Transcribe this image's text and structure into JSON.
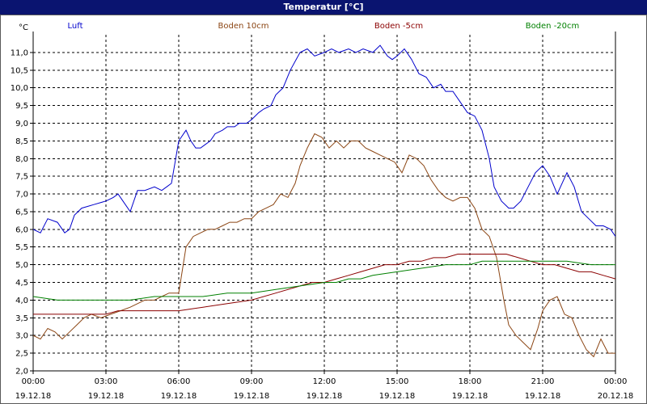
{
  "window": {
    "title": "Temperatur [°C]"
  },
  "chart_data": {
    "type": "line",
    "ylabel": "°C",
    "ylim": [
      2.0,
      11.5
    ],
    "yticks": [
      2.0,
      2.5,
      3.0,
      3.5,
      4.0,
      4.5,
      5.0,
      5.5,
      6.0,
      6.5,
      7.0,
      7.5,
      8.0,
      8.5,
      9.0,
      9.5,
      10.0,
      10.5,
      11.0
    ],
    "ytick_labels": [
      "2,0",
      "2,5",
      "3,0",
      "3,5",
      "4,0",
      "4,5",
      "5,0",
      "5,5",
      "6,0",
      "6,5",
      "7,0",
      "7,5",
      "8,0",
      "8,5",
      "9,0",
      "9,5",
      "10,0",
      "10,5",
      "11,0"
    ],
    "xlim": [
      0,
      24
    ],
    "xticks": [
      0,
      3,
      6,
      9,
      12,
      15,
      18,
      21,
      24
    ],
    "xtick_time_labels": [
      "00:00",
      "03:00",
      "06:00",
      "09:00",
      "12:00",
      "15:00",
      "18:00",
      "21:00",
      "00:00"
    ],
    "xtick_date_labels": [
      "19.12.18",
      "19.12.18",
      "19.12.18",
      "19.12.18",
      "19.12.18",
      "19.12.18",
      "19.12.18",
      "19.12.18",
      "20.12.18"
    ],
    "grid": true,
    "legend_position": "top",
    "series": [
      {
        "name": "Luft",
        "color": "#0000cc",
        "x": [
          0,
          0.3,
          0.6,
          1,
          1.3,
          1.5,
          1.7,
          2,
          2.5,
          3,
          3.3,
          3.5,
          3.7,
          4,
          4.3,
          4.6,
          5,
          5.3,
          5.5,
          5.7,
          6,
          6.3,
          6.5,
          6.7,
          6.9,
          7.1,
          7.3,
          7.5,
          7.8,
          8,
          8.3,
          8.5,
          8.8,
          9,
          9.3,
          9.5,
          9.8,
          10,
          10.3,
          10.6,
          11,
          11.3,
          11.6,
          12,
          12.3,
          12.6,
          13,
          13.3,
          13.6,
          14,
          14.3,
          14.6,
          14.8,
          15,
          15.3,
          15.6,
          15.9,
          16.2,
          16.5,
          16.8,
          17,
          17.3,
          17.6,
          17.9,
          18.2,
          18.5,
          18.8,
          19,
          19.3,
          19.6,
          19.8,
          20.1,
          20.4,
          20.7,
          21,
          21.3,
          21.6,
          21.8,
          22,
          22.3,
          22.6,
          22.9,
          23.2,
          23.5,
          23.8,
          24
        ],
        "y": [
          6.0,
          5.9,
          6.3,
          6.2,
          5.9,
          6.0,
          6.4,
          6.6,
          6.7,
          6.8,
          6.9,
          7.0,
          6.8,
          6.5,
          7.1,
          7.1,
          7.2,
          7.1,
          7.2,
          7.3,
          8.5,
          8.8,
          8.5,
          8.3,
          8.3,
          8.4,
          8.5,
          8.7,
          8.8,
          8.9,
          8.9,
          9.0,
          9.0,
          9.1,
          9.3,
          9.4,
          9.5,
          9.8,
          10.0,
          10.5,
          11.0,
          11.1,
          10.9,
          11.0,
          11.1,
          11.0,
          11.1,
          11.0,
          11.1,
          11.0,
          11.2,
          10.9,
          10.8,
          10.9,
          11.1,
          10.8,
          10.4,
          10.3,
          10.0,
          10.1,
          9.9,
          9.9,
          9.6,
          9.3,
          9.2,
          8.8,
          8.0,
          7.2,
          6.8,
          6.6,
          6.6,
          6.8,
          7.2,
          7.6,
          7.8,
          7.5,
          7.0,
          7.3,
          7.6,
          7.2,
          6.5,
          6.3,
          6.1,
          6.1,
          6.0,
          5.8
        ]
      },
      {
        "name": "Boden 10cm",
        "color": "#8b4513",
        "x": [
          0,
          0.3,
          0.6,
          0.9,
          1.2,
          1.5,
          1.8,
          2.1,
          2.4,
          2.8,
          3.2,
          3.6,
          4,
          4.3,
          4.6,
          5,
          5.3,
          5.6,
          6,
          6.3,
          6.6,
          6.9,
          7.2,
          7.5,
          7.8,
          8.1,
          8.4,
          8.7,
          9,
          9.3,
          9.6,
          9.9,
          10.2,
          10.5,
          10.8,
          11,
          11.3,
          11.6,
          11.9,
          12.2,
          12.5,
          12.8,
          13.1,
          13.4,
          13.7,
          14,
          14.3,
          14.6,
          14.9,
          15.2,
          15.5,
          15.8,
          16.1,
          16.4,
          16.7,
          17,
          17.3,
          17.6,
          17.9,
          18.2,
          18.5,
          18.8,
          19.1,
          19.4,
          19.6,
          19.9,
          20.2,
          20.5,
          20.8,
          21,
          21.3,
          21.6,
          21.9,
          22.2,
          22.5,
          22.8,
          23.1,
          23.4,
          23.7,
          24
        ],
        "y": [
          3.0,
          2.9,
          3.2,
          3.1,
          2.9,
          3.1,
          3.3,
          3.5,
          3.6,
          3.5,
          3.6,
          3.7,
          3.8,
          3.9,
          4.0,
          4.0,
          4.1,
          4.2,
          4.2,
          5.5,
          5.8,
          5.9,
          6.0,
          6.0,
          6.1,
          6.2,
          6.2,
          6.3,
          6.3,
          6.5,
          6.6,
          6.7,
          7.0,
          6.9,
          7.3,
          7.8,
          8.3,
          8.7,
          8.6,
          8.3,
          8.5,
          8.3,
          8.5,
          8.5,
          8.3,
          8.2,
          8.1,
          8.0,
          7.9,
          7.6,
          8.1,
          8.0,
          7.8,
          7.4,
          7.1,
          6.9,
          6.8,
          6.9,
          6.9,
          6.6,
          6.0,
          5.8,
          5.2,
          4.0,
          3.3,
          3.0,
          2.8,
          2.6,
          3.2,
          3.7,
          4.0,
          4.1,
          3.6,
          3.5,
          3.0,
          2.6,
          2.4,
          2.9,
          2.5,
          2.5
        ]
      },
      {
        "name": "Boden -5cm",
        "color": "#8b0000",
        "x": [
          0,
          1,
          2,
          3,
          3.5,
          4,
          5,
          6,
          7,
          8,
          9,
          10,
          11,
          11.5,
          12,
          12.5,
          13,
          13.5,
          14,
          14.5,
          15,
          15.5,
          16,
          16.5,
          17,
          17.5,
          18,
          18.5,
          19,
          19.5,
          20,
          20.5,
          21,
          21.5,
          22,
          22.5,
          23,
          23.5,
          24
        ],
        "y": [
          3.6,
          3.6,
          3.6,
          3.6,
          3.7,
          3.7,
          3.7,
          3.7,
          3.8,
          3.9,
          4.0,
          4.2,
          4.4,
          4.5,
          4.5,
          4.6,
          4.7,
          4.8,
          4.9,
          5.0,
          5.0,
          5.1,
          5.1,
          5.2,
          5.2,
          5.3,
          5.3,
          5.3,
          5.3,
          5.3,
          5.2,
          5.1,
          5.0,
          5.0,
          4.9,
          4.8,
          4.8,
          4.7,
          4.6
        ]
      },
      {
        "name": "Boden -20cm",
        "color": "#008000",
        "x": [
          0,
          1,
          2,
          3,
          4,
          5,
          6,
          7,
          8,
          9,
          10,
          11,
          12,
          12.5,
          13,
          13.5,
          14,
          15,
          16,
          17,
          18,
          18.5,
          19,
          20,
          21,
          22,
          23,
          24
        ],
        "y": [
          4.1,
          4.0,
          4.0,
          4.0,
          4.0,
          4.1,
          4.1,
          4.1,
          4.2,
          4.2,
          4.3,
          4.4,
          4.5,
          4.5,
          4.6,
          4.6,
          4.7,
          4.8,
          4.9,
          5.0,
          5.0,
          5.1,
          5.1,
          5.1,
          5.1,
          5.1,
          5.0,
          5.0
        ]
      }
    ]
  }
}
